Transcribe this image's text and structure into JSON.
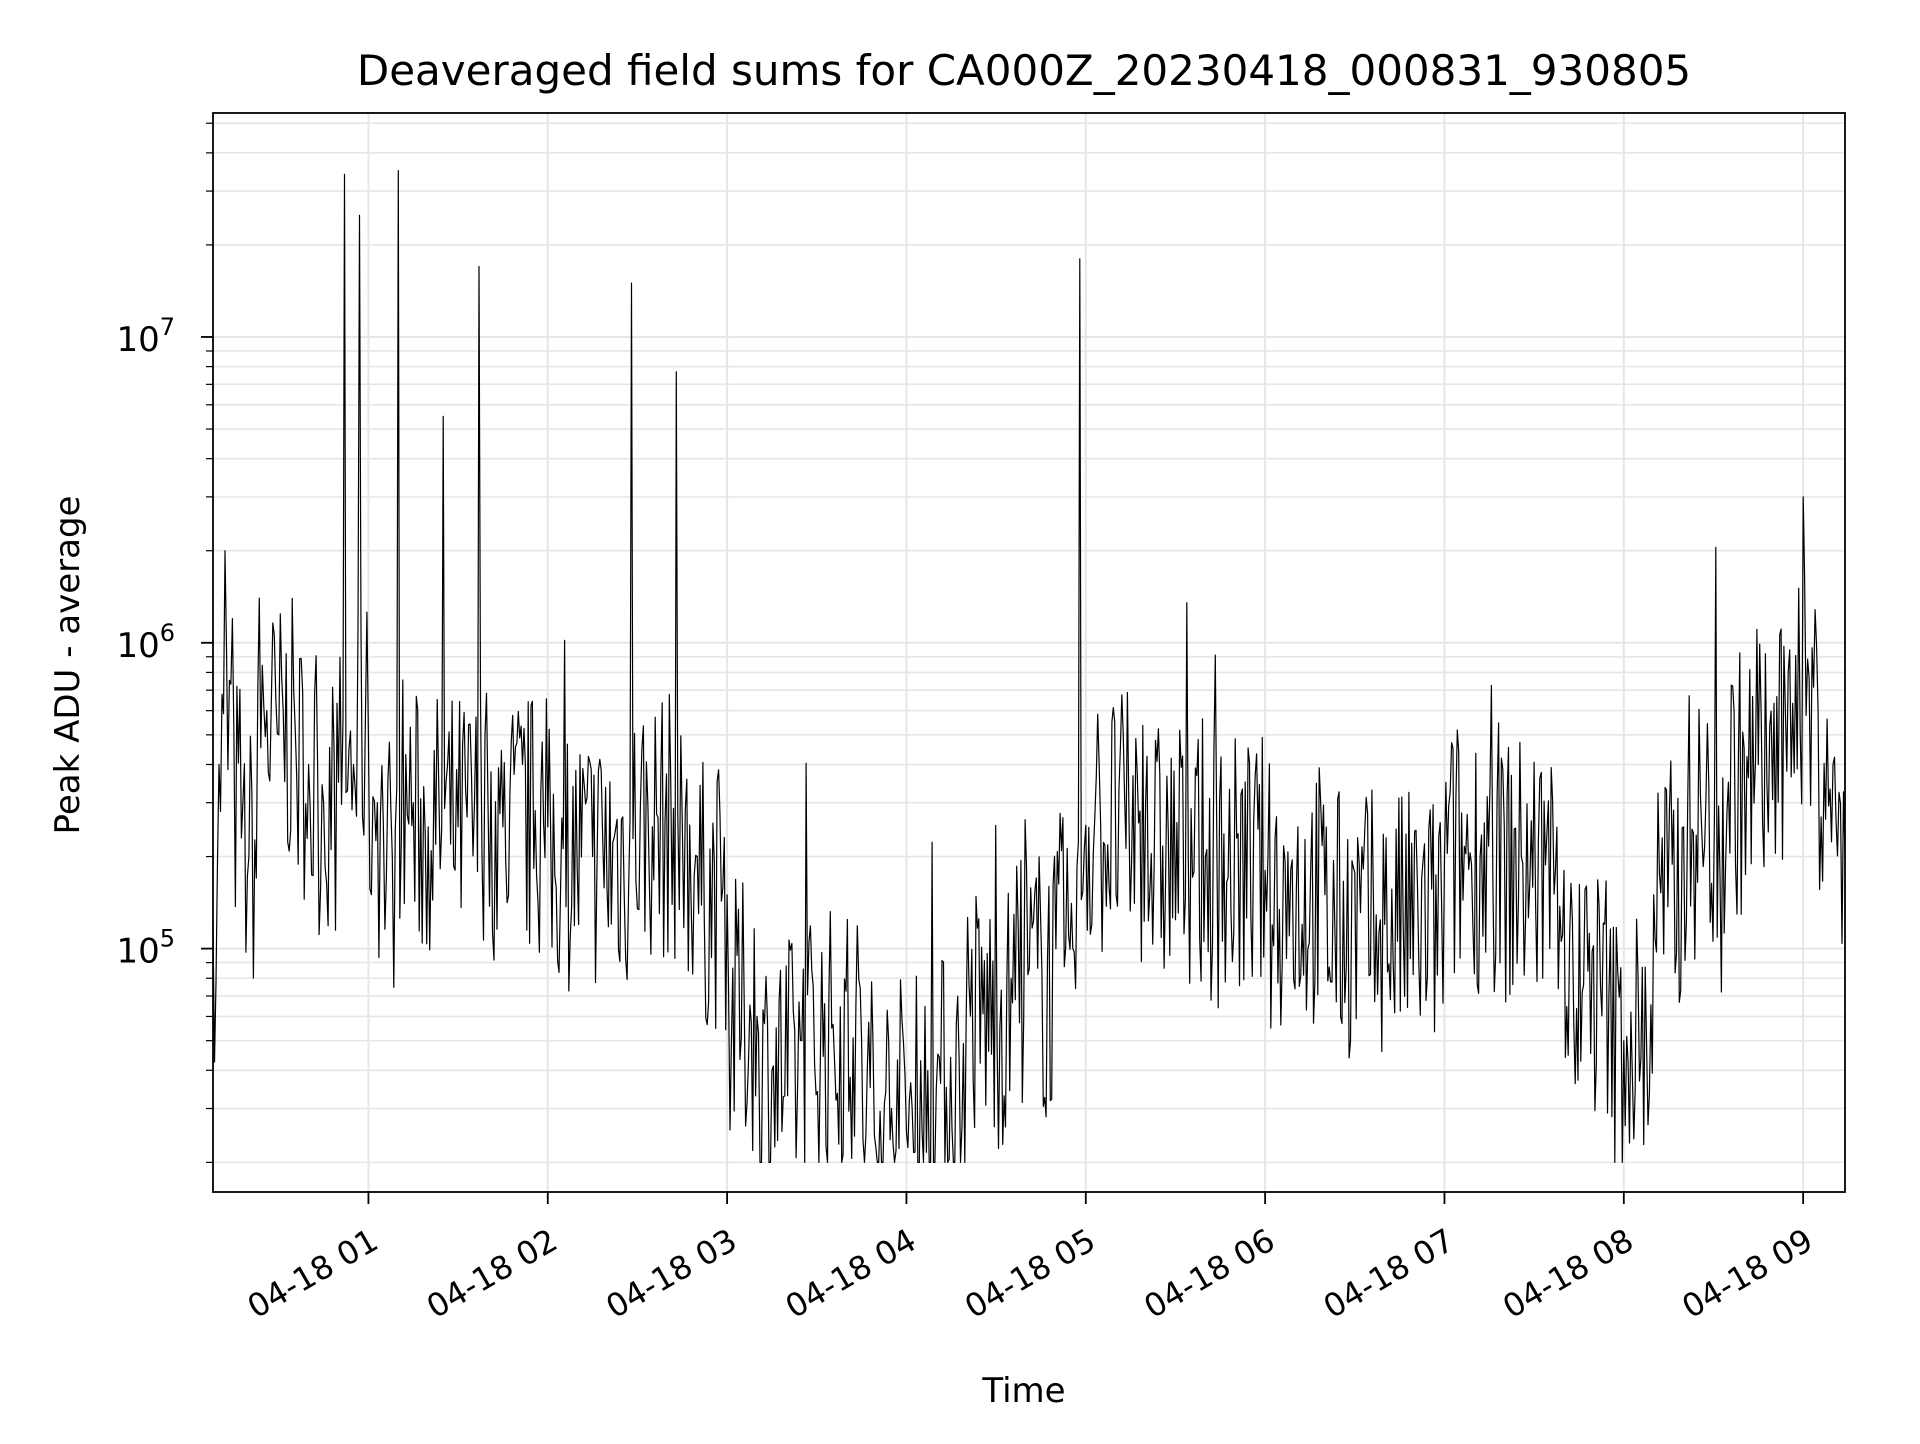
{
  "chart_data": {
    "type": "line",
    "title": "Deaveraged field sums for CA000Z_20230418_000831_930805",
    "xlabel": "Time",
    "ylabel": "Peak ADU - average",
    "yscale": "log",
    "grid": true,
    "legend": "none",
    "line_color": "#000000",
    "grid_color": "#e6e6e6",
    "xlim": [
      "2023-04-18 00:08",
      "2023-04-18 09:14"
    ],
    "ylim": [
      16000,
      54000000
    ],
    "x_ticks": [
      "04-18 01",
      "04-18 02",
      "04-18 03",
      "04-18 04",
      "04-18 05",
      "04-18 06",
      "04-18 07",
      "04-18 08",
      "04-18 09"
    ],
    "y_ticks": [
      {
        "value": 100000,
        "base": "10",
        "exp": "5"
      },
      {
        "value": 1000000,
        "base": "10",
        "exp": "6"
      },
      {
        "value": 10000000,
        "base": "10",
        "exp": "7"
      }
    ],
    "series": [
      {
        "x": [
          "2023-04-18 00:08",
          "2023-04-18 00:10",
          "2023-04-18 00:12",
          "2023-04-18 00:15",
          "2023-04-18 00:18",
          "2023-04-18 00:20",
          "2023-04-18 00:23",
          "2023-04-18 00:26",
          "2023-04-18 00:30",
          "2023-04-18 00:35",
          "2023-04-18 00:40",
          "2023-04-18 00:45",
          "2023-04-18 00:50",
          "2023-04-18 00:52",
          "2023-04-18 00:55",
          "2023-04-18 00:57",
          "2023-04-18 01:00",
          "2023-04-18 01:03",
          "2023-04-18 01:05",
          "2023-04-18 01:08",
          "2023-04-18 01:10",
          "2023-04-18 01:15",
          "2023-04-18 01:20",
          "2023-04-18 01:25",
          "2023-04-18 01:30",
          "2023-04-18 01:37",
          "2023-04-18 01:40",
          "2023-04-18 01:45",
          "2023-04-18 02:00",
          "2023-04-18 02:15",
          "2023-04-18 02:28",
          "2023-04-18 02:35",
          "2023-04-18 02:43",
          "2023-04-18 02:50",
          "2023-04-18 03:00",
          "2023-04-18 03:10",
          "2023-04-18 03:15",
          "2023-04-18 03:25",
          "2023-04-18 03:35",
          "2023-04-18 03:45",
          "2023-04-18 03:55",
          "2023-04-18 04:00",
          "2023-04-18 04:10",
          "2023-04-18 04:20",
          "2023-04-18 04:35",
          "2023-04-18 04:50",
          "2023-04-18 04:58",
          "2023-04-18 05:05",
          "2023-04-18 05:20",
          "2023-04-18 05:40",
          "2023-04-18 06:00",
          "2023-04-18 06:20",
          "2023-04-18 06:40",
          "2023-04-18 07:00",
          "2023-04-18 07:20",
          "2023-04-18 07:40",
          "2023-04-18 07:55",
          "2023-04-18 08:00",
          "2023-04-18 08:10",
          "2023-04-18 08:20",
          "2023-04-18 08:35",
          "2023-04-18 08:45",
          "2023-04-18 08:55",
          "2023-04-18 09:00",
          "2023-04-18 09:05",
          "2023-04-18 09:10",
          "2023-04-18 09:14"
        ],
        "values": [
          120000,
          400000,
          2000000,
          500000,
          300000,
          200000,
          700000,
          600000,
          500000,
          700000,
          400000,
          300000,
          350000,
          34000000,
          400000,
          25000000,
          500000,
          300000,
          250000,
          200000,
          35000000,
          300000,
          250000,
          5500000,
          250000,
          17000000,
          300000,
          250000,
          250000,
          200000,
          15000000,
          250000,
          7700000,
          200000,
          150000,
          60000,
          40000,
          50000,
          55000,
          50000,
          30000,
          25000,
          35000,
          60000,
          80000,
          100000,
          18000000,
          250000,
          300000,
          200000,
          180000,
          150000,
          120000,
          200000,
          250000,
          180000,
          70000,
          50000,
          150000,
          250000,
          350000,
          400000,
          800000,
          3000000,
          600000,
          400000,
          200000
        ]
      }
    ]
  }
}
